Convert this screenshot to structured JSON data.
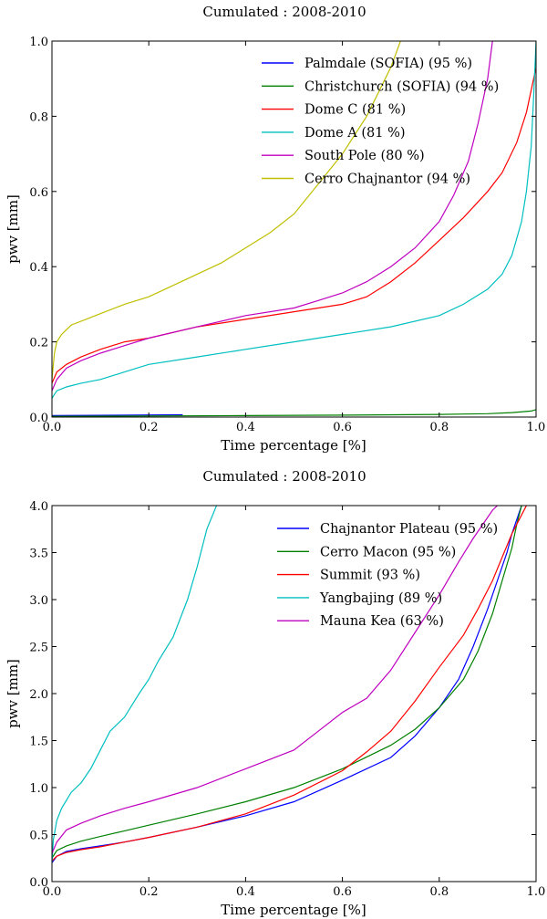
{
  "chart_data": [
    {
      "type": "line",
      "title": "Cumulated : 2008-2010",
      "xlabel": "Time percentage [%]",
      "ylabel": "pwv [mm]",
      "xlim": [
        0,
        1
      ],
      "ylim": [
        0,
        1.0
      ],
      "xticks": [
        "0.0",
        "0.2",
        "0.4",
        "0.6",
        "0.8",
        "1.0"
      ],
      "yticks": [
        "0.0",
        "0.2",
        "0.4",
        "0.6",
        "0.8",
        "1.0"
      ],
      "grid": false,
      "legend_position": "top-right",
      "series": [
        {
          "name": "Palmdale (SOFIA) (95 %)",
          "color": "#0000ff",
          "x": [
            0.0,
            0.27
          ],
          "y": [
            0.004,
            0.006
          ]
        },
        {
          "name": "Christchurch (SOFIA) (94 %)",
          "color": "#008000",
          "x": [
            0.0,
            0.2,
            0.4,
            0.6,
            0.8,
            0.9,
            0.95,
            0.99,
            1.0
          ],
          "y": [
            0.002,
            0.003,
            0.004,
            0.005,
            0.007,
            0.009,
            0.012,
            0.016,
            0.02
          ]
        },
        {
          "name": "Dome C (81 %)",
          "color": "#ff0000",
          "x": [
            0.0,
            0.01,
            0.03,
            0.06,
            0.1,
            0.15,
            0.2,
            0.3,
            0.4,
            0.5,
            0.6,
            0.65,
            0.7,
            0.75,
            0.8,
            0.85,
            0.9,
            0.93,
            0.96,
            0.98,
            0.99,
            1.0
          ],
          "y": [
            0.09,
            0.12,
            0.14,
            0.16,
            0.18,
            0.2,
            0.21,
            0.24,
            0.26,
            0.28,
            0.3,
            0.32,
            0.36,
            0.41,
            0.47,
            0.53,
            0.6,
            0.65,
            0.73,
            0.81,
            0.87,
            0.93
          ]
        },
        {
          "name": "Dome A (81 %)",
          "color": "#00bfbf",
          "x": [
            0.0,
            0.01,
            0.03,
            0.06,
            0.1,
            0.15,
            0.2,
            0.3,
            0.4,
            0.5,
            0.6,
            0.7,
            0.8,
            0.85,
            0.9,
            0.93,
            0.95,
            0.97,
            0.98,
            0.99,
            0.995,
            1.0
          ],
          "y": [
            0.05,
            0.07,
            0.08,
            0.09,
            0.1,
            0.12,
            0.14,
            0.16,
            0.18,
            0.2,
            0.22,
            0.24,
            0.27,
            0.3,
            0.34,
            0.38,
            0.43,
            0.52,
            0.6,
            0.72,
            0.85,
            1.0
          ]
        },
        {
          "name": "South Pole (80 %)",
          "color": "#bf00bf",
          "x": [
            0.0,
            0.01,
            0.03,
            0.06,
            0.1,
            0.15,
            0.2,
            0.3,
            0.4,
            0.5,
            0.55,
            0.6,
            0.65,
            0.7,
            0.75,
            0.8,
            0.83,
            0.86,
            0.88,
            0.9,
            0.91
          ],
          "y": [
            0.07,
            0.1,
            0.13,
            0.15,
            0.17,
            0.19,
            0.21,
            0.24,
            0.27,
            0.29,
            0.31,
            0.33,
            0.36,
            0.4,
            0.45,
            0.52,
            0.59,
            0.68,
            0.78,
            0.9,
            1.0
          ]
        },
        {
          "name": "Cerro Chajnantor (94 %)",
          "color": "#bfbf00",
          "x": [
            0.0,
            0.005,
            0.01,
            0.02,
            0.04,
            0.07,
            0.1,
            0.15,
            0.2,
            0.25,
            0.3,
            0.35,
            0.4,
            0.45,
            0.5,
            0.55,
            0.6,
            0.65,
            0.7,
            0.72
          ],
          "y": [
            0.1,
            0.17,
            0.2,
            0.22,
            0.245,
            0.26,
            0.275,
            0.3,
            0.32,
            0.35,
            0.38,
            0.41,
            0.45,
            0.49,
            0.54,
            0.62,
            0.7,
            0.8,
            0.93,
            1.0
          ]
        }
      ]
    },
    {
      "type": "line",
      "title": "Cumulated : 2008-2010",
      "xlabel": "Time percentage [%]",
      "ylabel": "pwv [mm]",
      "xlim": [
        0,
        1
      ],
      "ylim": [
        0,
        4.0
      ],
      "xticks": [
        "0.0",
        "0.2",
        "0.4",
        "0.6",
        "0.8",
        "1.0"
      ],
      "yticks": [
        "0.0",
        "0.5",
        "1.0",
        "1.5",
        "2.0",
        "2.5",
        "3.0",
        "3.5",
        "4.0"
      ],
      "grid": false,
      "legend_position": "top-right",
      "series": [
        {
          "name": "Chajnantor Plateau (95 %)",
          "color": "#0000ff",
          "x": [
            0.0,
            0.01,
            0.03,
            0.06,
            0.1,
            0.15,
            0.2,
            0.3,
            0.4,
            0.5,
            0.6,
            0.7,
            0.75,
            0.8,
            0.84,
            0.87,
            0.9,
            0.92,
            0.94,
            0.95,
            0.96,
            0.97
          ],
          "y": [
            0.2,
            0.27,
            0.32,
            0.35,
            0.38,
            0.42,
            0.47,
            0.58,
            0.7,
            0.85,
            1.08,
            1.32,
            1.55,
            1.85,
            2.15,
            2.5,
            2.9,
            3.2,
            3.5,
            3.7,
            3.85,
            4.0
          ]
        },
        {
          "name": "Cerro Macon (95 %)",
          "color": "#008000",
          "x": [
            0.0,
            0.01,
            0.03,
            0.06,
            0.1,
            0.15,
            0.2,
            0.3,
            0.4,
            0.5,
            0.6,
            0.7,
            0.75,
            0.8,
            0.85,
            0.88,
            0.91,
            0.93,
            0.95,
            0.96,
            0.97
          ],
          "y": [
            0.25,
            0.33,
            0.38,
            0.43,
            0.48,
            0.54,
            0.6,
            0.72,
            0.85,
            1.0,
            1.2,
            1.45,
            1.62,
            1.85,
            2.15,
            2.45,
            2.85,
            3.2,
            3.55,
            3.8,
            4.0
          ]
        },
        {
          "name": "Summit (93 %)",
          "color": "#ff0000",
          "x": [
            0.0,
            0.01,
            0.03,
            0.06,
            0.1,
            0.15,
            0.2,
            0.3,
            0.4,
            0.5,
            0.6,
            0.65,
            0.7,
            0.75,
            0.8,
            0.85,
            0.88,
            0.91,
            0.93,
            0.95,
            0.97,
            0.98
          ],
          "y": [
            0.22,
            0.27,
            0.31,
            0.34,
            0.37,
            0.42,
            0.47,
            0.58,
            0.72,
            0.92,
            1.18,
            1.38,
            1.6,
            1.92,
            2.28,
            2.62,
            2.9,
            3.2,
            3.45,
            3.7,
            3.9,
            4.0
          ]
        },
        {
          "name": "Yangbajing (89 %)",
          "color": "#00bfbf",
          "x": [
            0.0,
            0.003,
            0.01,
            0.02,
            0.04,
            0.06,
            0.08,
            0.1,
            0.12,
            0.15,
            0.18,
            0.2,
            0.22,
            0.25,
            0.28,
            0.3,
            0.32,
            0.34
          ],
          "y": [
            0.2,
            0.45,
            0.65,
            0.78,
            0.95,
            1.05,
            1.2,
            1.4,
            1.6,
            1.75,
            2.0,
            2.15,
            2.35,
            2.6,
            3.0,
            3.35,
            3.75,
            4.0
          ]
        },
        {
          "name": "Mauna Kea (63 %)",
          "color": "#bf00bf",
          "x": [
            0.0,
            0.01,
            0.03,
            0.06,
            0.1,
            0.15,
            0.2,
            0.3,
            0.4,
            0.5,
            0.55,
            0.6,
            0.65,
            0.7,
            0.75,
            0.8,
            0.84,
            0.87,
            0.89,
            0.91,
            0.92
          ],
          "y": [
            0.3,
            0.42,
            0.55,
            0.62,
            0.7,
            0.78,
            0.85,
            1.0,
            1.2,
            1.4,
            1.6,
            1.8,
            1.95,
            2.25,
            2.65,
            3.05,
            3.4,
            3.65,
            3.8,
            3.95,
            4.0
          ]
        }
      ]
    }
  ]
}
